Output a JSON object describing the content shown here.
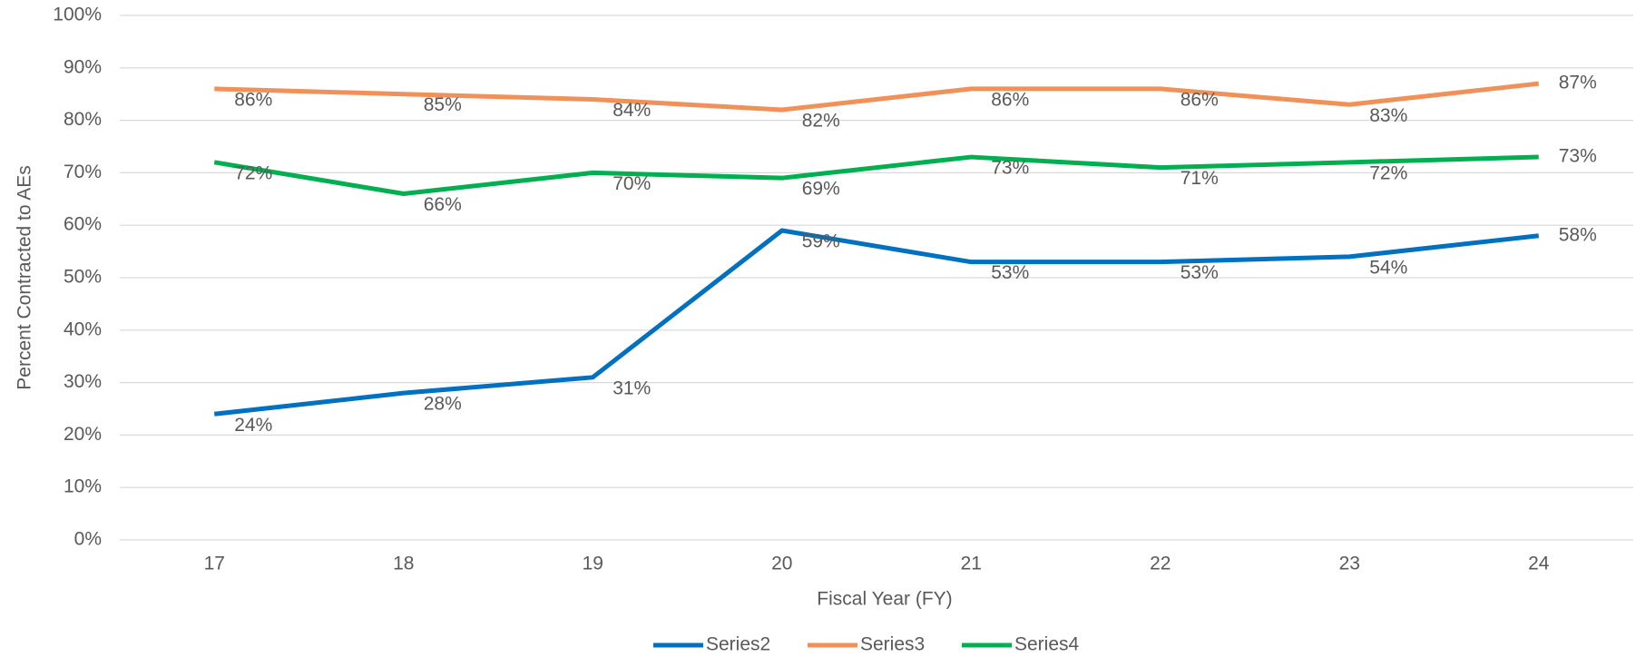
{
  "chart_data": {
    "type": "line",
    "x_label": "Fiscal Year (FY)",
    "y_label": "Percent Contracted to AEs",
    "categories": [
      "17",
      "18",
      "19",
      "20",
      "21",
      "22",
      "23",
      "24"
    ],
    "series": [
      {
        "name": "Series2",
        "color": "#0070c0",
        "values": [
          24,
          28,
          31,
          59,
          53,
          53,
          54,
          58
        ],
        "value_labels": [
          "24%",
          "28%",
          "31%",
          "59%",
          "53%",
          "53%",
          "54%",
          "58%"
        ]
      },
      {
        "name": "Series3",
        "color": "#f0915a",
        "values": [
          86,
          85,
          84,
          82,
          86,
          86,
          83,
          87
        ],
        "value_labels": [
          "86%",
          "85%",
          "84%",
          "82%",
          "86%",
          "86%",
          "83%",
          "87%"
        ]
      },
      {
        "name": "Series4",
        "color": "#00b050",
        "values": [
          72,
          66,
          70,
          69,
          73,
          71,
          72,
          73
        ],
        "value_labels": [
          "72%",
          "66%",
          "70%",
          "69%",
          "73%",
          "71%",
          "72%",
          "73%"
        ]
      }
    ],
    "ylim": [
      0,
      100
    ],
    "yticks": [
      {
        "value": 0,
        "label": "0%"
      },
      {
        "value": 10,
        "label": "10%"
      },
      {
        "value": 20,
        "label": "20%"
      },
      {
        "value": 30,
        "label": "30%"
      },
      {
        "value": 40,
        "label": "40%"
      },
      {
        "value": 50,
        "label": "50%"
      },
      {
        "value": 60,
        "label": "60%"
      },
      {
        "value": 70,
        "label": "70%"
      },
      {
        "value": 80,
        "label": "80%"
      },
      {
        "value": 90,
        "label": "90%"
      },
      {
        "value": 100,
        "label": "100%"
      }
    ],
    "grid": true,
    "legend": "bottom"
  }
}
